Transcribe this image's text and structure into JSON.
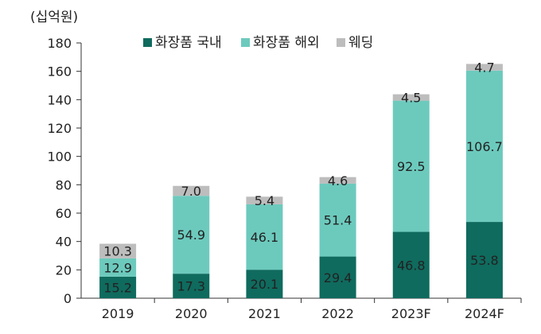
{
  "chart_data": {
    "type": "bar",
    "stacked": true,
    "unit_label": "(십억원)",
    "categories": [
      "2019",
      "2020",
      "2021",
      "2022",
      "2023F",
      "2024F"
    ],
    "series": [
      {
        "name": "화장품 국내",
        "color": "#0f6b5e",
        "values": [
          15.2,
          17.3,
          20.1,
          29.4,
          46.8,
          53.8
        ]
      },
      {
        "name": "화장품 해외",
        "color": "#6ccabd",
        "values": [
          12.9,
          54.9,
          46.1,
          51.4,
          92.5,
          106.7
        ]
      },
      {
        "name": "웨딩",
        "color": "#bdbdbd",
        "values": [
          10.3,
          7.0,
          5.4,
          4.6,
          4.5,
          4.7
        ]
      }
    ],
    "ylim": [
      0,
      180
    ],
    "yticks": [
      0,
      20,
      40,
      60,
      80,
      100,
      120,
      140,
      160,
      180
    ],
    "grid": false,
    "legend_position": "top"
  }
}
